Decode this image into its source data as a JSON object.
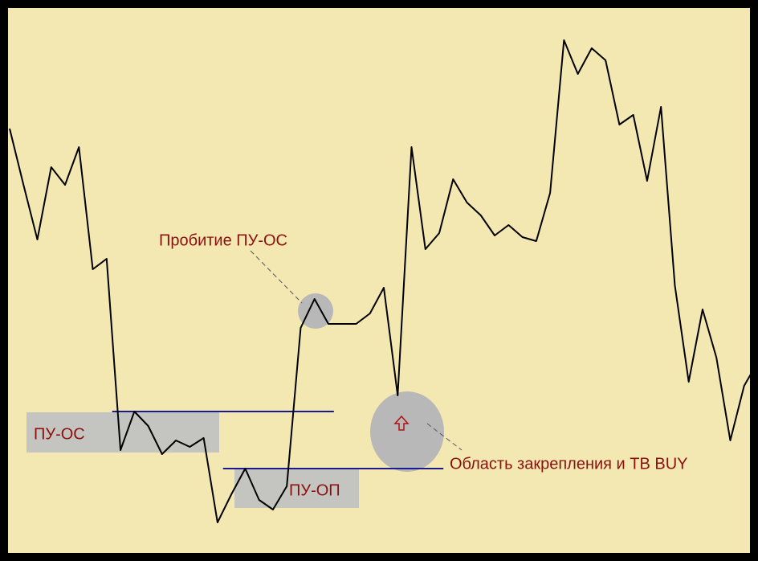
{
  "chart_data": {
    "type": "line",
    "x": [
      0,
      1,
      2,
      3,
      4,
      5,
      6,
      7,
      8,
      9,
      10,
      11,
      12,
      13,
      14,
      15,
      16,
      17,
      18,
      19,
      20,
      21,
      22,
      23,
      24,
      25,
      26,
      27,
      28,
      29,
      30,
      31,
      32,
      33,
      34,
      35,
      36,
      37,
      38,
      39,
      40,
      41,
      42,
      43,
      44,
      45,
      46,
      47,
      48,
      49,
      50,
      51,
      52,
      53,
      54
    ],
    "series": [
      {
        "color": "#000000",
        "values": [
          538,
          468,
          400,
          490,
          468,
          515,
          363,
          376,
          138,
          186,
          168,
          133,
          150,
          142,
          153,
          48,
          83,
          115,
          76,
          64,
          93,
          290,
          326,
          295,
          295,
          295,
          308,
          340,
          206,
          515,
          388,
          408,
          475,
          446,
          430,
          405,
          418,
          403,
          398,
          458,
          648,
          606,
          638,
          623,
          543,
          555,
          473,
          565,
          343,
          223,
          313,
          253,
          150,
          218,
          248
        ]
      }
    ],
    "xlim": [
      0,
      54
    ],
    "ylim": [
      0,
      698
    ],
    "levels": [
      {
        "name": "ПУ-ОС",
        "value": 186,
        "from": 7.4,
        "to": 23.4
      },
      {
        "name": "ПУ-ОП",
        "value": 115,
        "from": 15.4,
        "to": 31.3
      }
    ],
    "annotations": [
      "Пробитие ПУ-ОС",
      "Область закрепления и ТВ BUY"
    ]
  }
}
